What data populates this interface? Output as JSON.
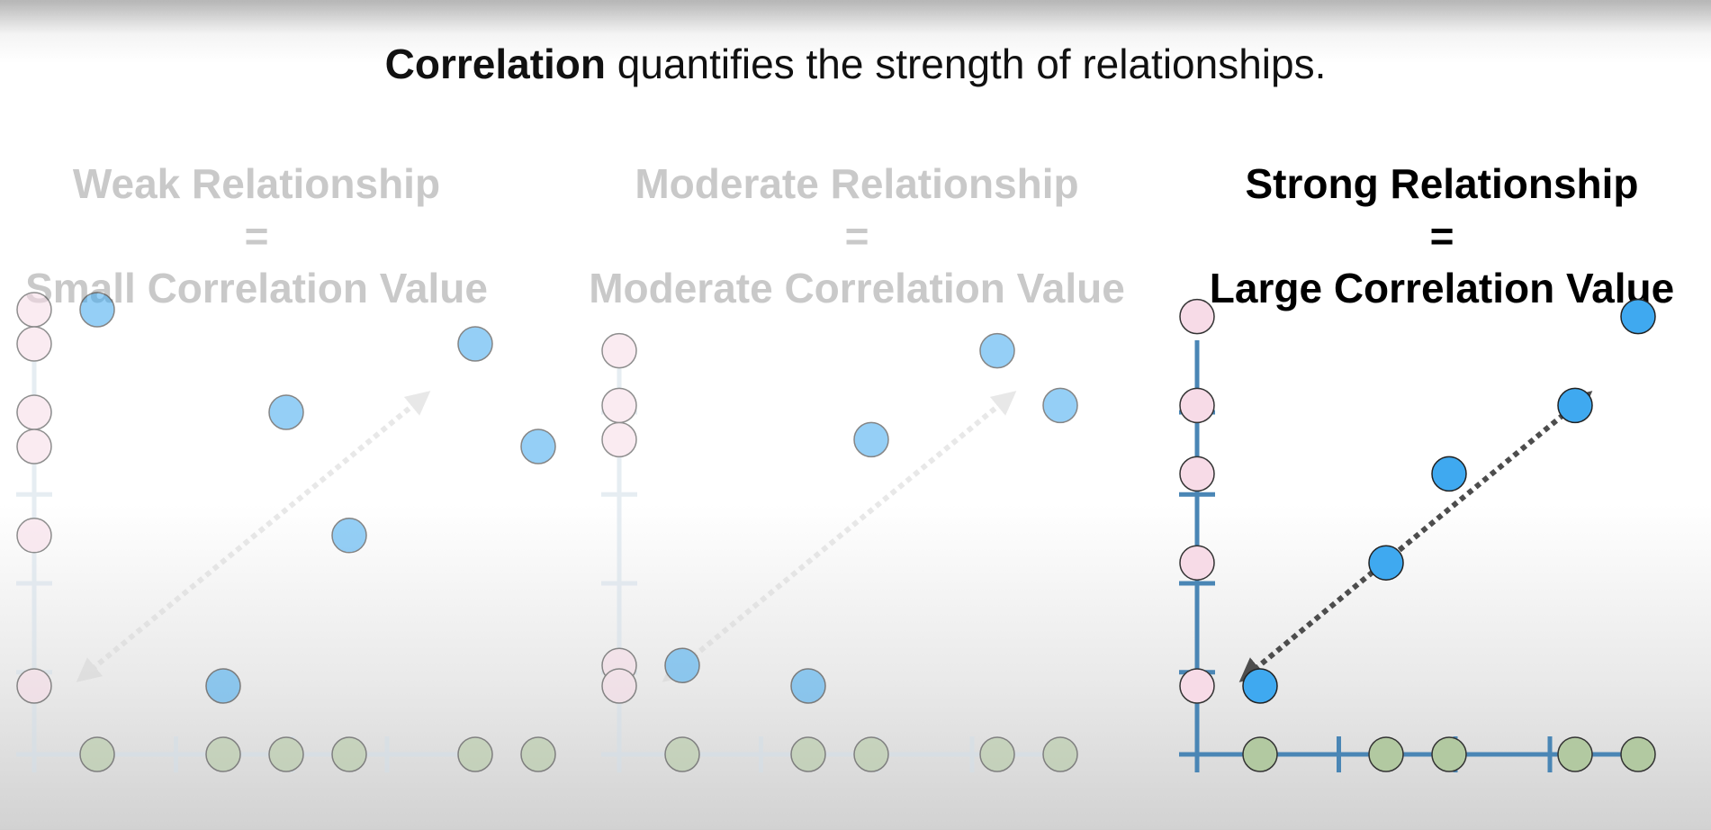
{
  "headline": {
    "bold": "Correlation",
    "rest": " quantifies the strength of relationships."
  },
  "panels": [
    {
      "title_top": "Weak Relationship",
      "title_eq": "=",
      "title_bottom": "Small Correlation Value",
      "state": "faded",
      "points": [
        [
          1,
          6.5
        ],
        [
          4,
          5.0
        ],
        [
          5,
          3.2
        ],
        [
          7,
          6.0
        ],
        [
          8,
          4.5
        ],
        [
          3,
          1.0
        ]
      ]
    },
    {
      "title_top": "Moderate Relationship",
      "title_eq": "=",
      "title_bottom": "Moderate Correlation Value",
      "state": "faded",
      "points": [
        [
          1,
          1.3
        ],
        [
          3,
          1.0
        ],
        [
          4,
          4.6
        ],
        [
          6,
          5.9
        ],
        [
          7,
          5.1
        ]
      ]
    },
    {
      "title_top": "Strong Relationship",
      "title_eq": "=",
      "title_bottom": "Large Correlation Value",
      "state": "active",
      "points": [
        [
          1,
          1.0
        ],
        [
          3,
          2.8
        ],
        [
          4,
          4.1
        ],
        [
          6,
          5.1
        ],
        [
          7,
          6.4
        ]
      ]
    }
  ],
  "colors": {
    "axis_active": "#4a86b5",
    "axis_faded": "#d3dfe9",
    "x_point": "#b2c9a1",
    "y_point": "#f7dbe7",
    "data_point": "#3fa9f0",
    "arrow_active": "#4d4d4d",
    "arrow_faded": "#d6d6d6"
  }
}
